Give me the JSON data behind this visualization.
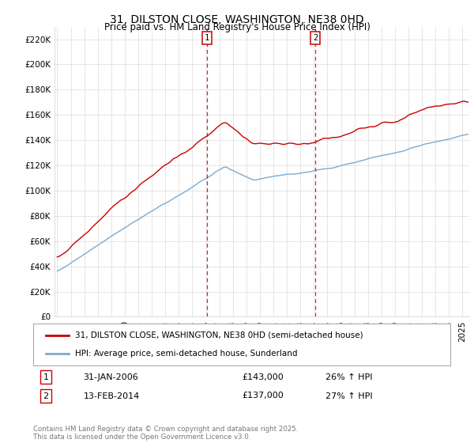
{
  "title": "31, DILSTON CLOSE, WASHINGTON, NE38 0HD",
  "subtitle": "Price paid vs. HM Land Registry's House Price Index (HPI)",
  "ylabel_ticks": [
    "£0",
    "£20K",
    "£40K",
    "£60K",
    "£80K",
    "£100K",
    "£120K",
    "£140K",
    "£160K",
    "£180K",
    "£200K",
    "£220K"
  ],
  "ytick_values": [
    0,
    20000,
    40000,
    60000,
    80000,
    100000,
    120000,
    140000,
    160000,
    180000,
    200000,
    220000
  ],
  "ylim": [
    0,
    230000
  ],
  "xlim_start": 1994.8,
  "xlim_end": 2025.5,
  "line1_color": "#cc0000",
  "line2_color": "#7aaad0",
  "marker1_date": 2006.08,
  "marker2_date": 2014.12,
  "legend_line1": "31, DILSTON CLOSE, WASHINGTON, NE38 0HD (semi-detached house)",
  "legend_line2": "HPI: Average price, semi-detached house, Sunderland",
  "annotation1_label": "1",
  "annotation1_date": "31-JAN-2006",
  "annotation1_price": "£143,000",
  "annotation1_hpi": "26% ↑ HPI",
  "annotation2_label": "2",
  "annotation2_date": "13-FEB-2014",
  "annotation2_price": "£137,000",
  "annotation2_hpi": "27% ↑ HPI",
  "footer": "Contains HM Land Registry data © Crown copyright and database right 2025.\nThis data is licensed under the Open Government Licence v3.0.",
  "background_color": "#ffffff",
  "grid_color": "#e0e0e0"
}
